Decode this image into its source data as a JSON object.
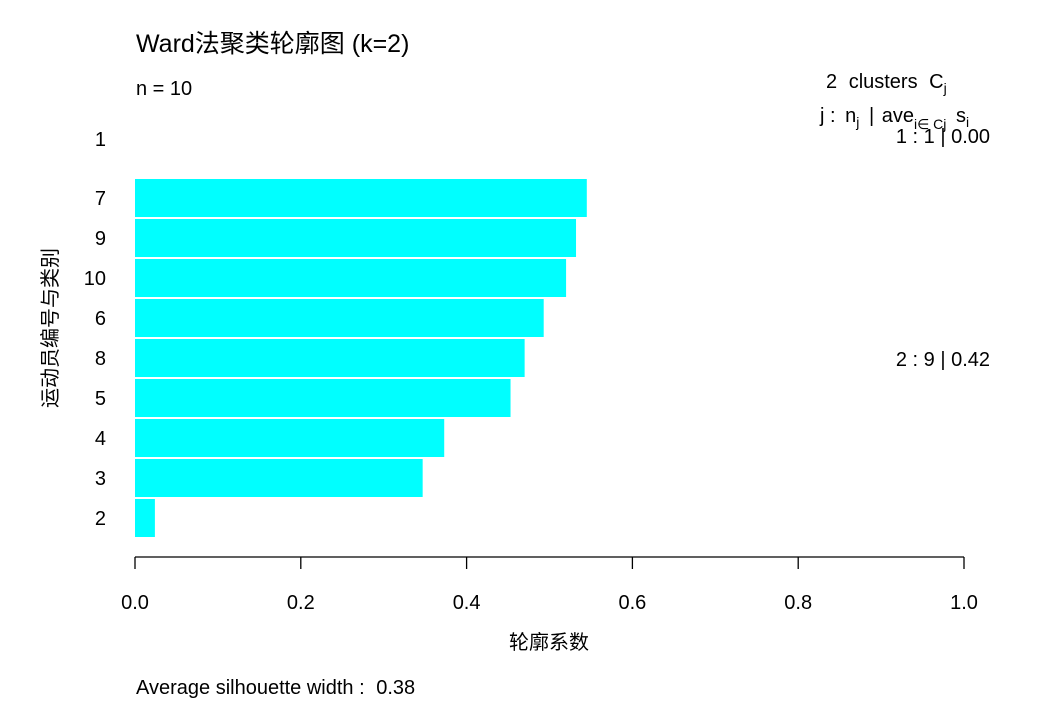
{
  "chart_data": {
    "type": "bar",
    "orientation": "horizontal",
    "title": "Ward法聚类轮廓图 (k=2)",
    "n_label": "n = 10",
    "xlabel": "轮廓系数",
    "ylabel": "运动员编号与类别",
    "xlim": [
      0,
      1
    ],
    "xticks": [
      "0.0",
      "0.2",
      "0.4",
      "0.6",
      "0.8",
      "1.0"
    ],
    "bar_color": "#00ffff",
    "categories": [
      "1",
      "7",
      "9",
      "10",
      "6",
      "8",
      "5",
      "4",
      "3",
      "2"
    ],
    "values": [
      0.0,
      0.545,
      0.532,
      0.52,
      0.493,
      0.47,
      0.453,
      0.373,
      0.347,
      0.024
    ],
    "cluster_of_row": [
      1,
      2,
      2,
      2,
      2,
      2,
      2,
      2,
      2,
      2
    ],
    "legend": {
      "count": "2",
      "clusters_word": "clusters",
      "C": "C",
      "j_sub": "j",
      "j_label": "j :",
      "n": "n",
      "ave": "ave",
      "ave_sub": "i∈ Cj",
      "s": "s",
      "s_sub": "i",
      "bar_sep": "|"
    },
    "cluster_stats": [
      {
        "j": "1 :",
        "n": "1",
        "sep": "|",
        "ave": "0.00"
      },
      {
        "j": "2 :",
        "n": "9",
        "sep": "|",
        "ave": "0.42"
      }
    ],
    "average_label": "Average silhouette width :",
    "average_value": "0.38"
  }
}
